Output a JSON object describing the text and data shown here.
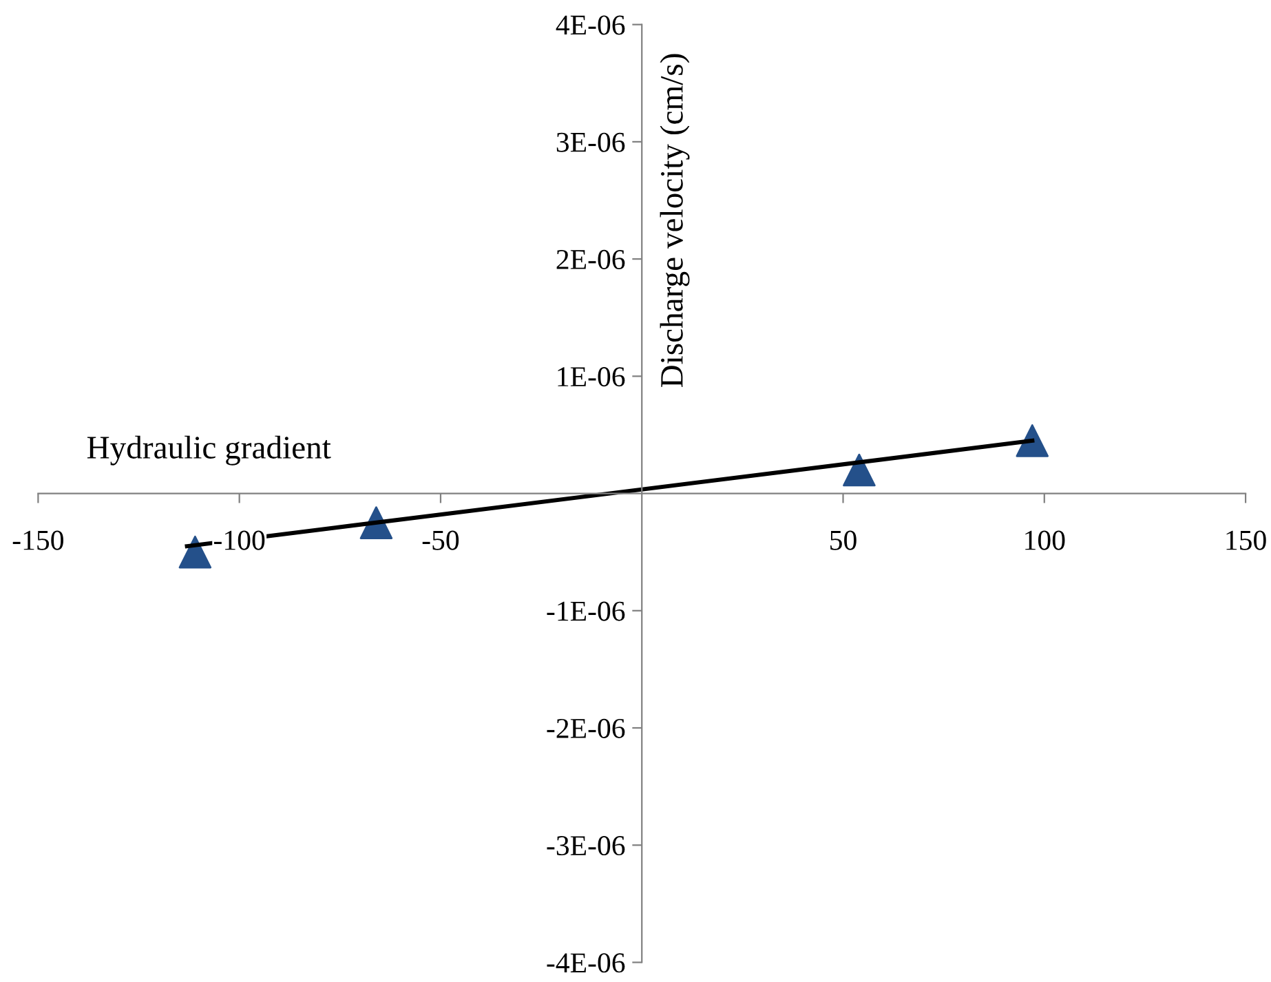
{
  "chart_data": {
    "type": "scatter",
    "xlabel": "Hydraulic gradient",
    "ylabel": "Discharge velocity (cm/s)",
    "xlim": [
      -150,
      150
    ],
    "ylim": [
      -4e-06,
      4e-06
    ],
    "xticks": [
      -150,
      -100,
      -50,
      50,
      100,
      150
    ],
    "yticks": [
      {
        "value": -4e-06,
        "label": "-4E-06"
      },
      {
        "value": -3e-06,
        "label": "-3E-06"
      },
      {
        "value": -2e-06,
        "label": "-2E-06"
      },
      {
        "value": -1e-06,
        "label": "-1E-06"
      },
      {
        "value": 1e-06,
        "label": "1E-06"
      },
      {
        "value": 2e-06,
        "label": "2E-06"
      },
      {
        "value": 3e-06,
        "label": "3E-06"
      },
      {
        "value": 4e-06,
        "label": "4E-06"
      }
    ],
    "series": [
      {
        "color": "#24508a",
        "marker": "triangle",
        "x": [
          -111,
          -66,
          54,
          97
        ],
        "values": [
          -5e-07,
          -2.5e-07,
          2e-07,
          4.5e-07
        ]
      },
      {
        "type": "line",
        "color": "#000000",
        "marker": "none",
        "line_style": "solid",
        "x": [
          -113,
          97
        ],
        "values": [
          -4.5e-07,
          4.5e-07
        ]
      }
    ]
  }
}
